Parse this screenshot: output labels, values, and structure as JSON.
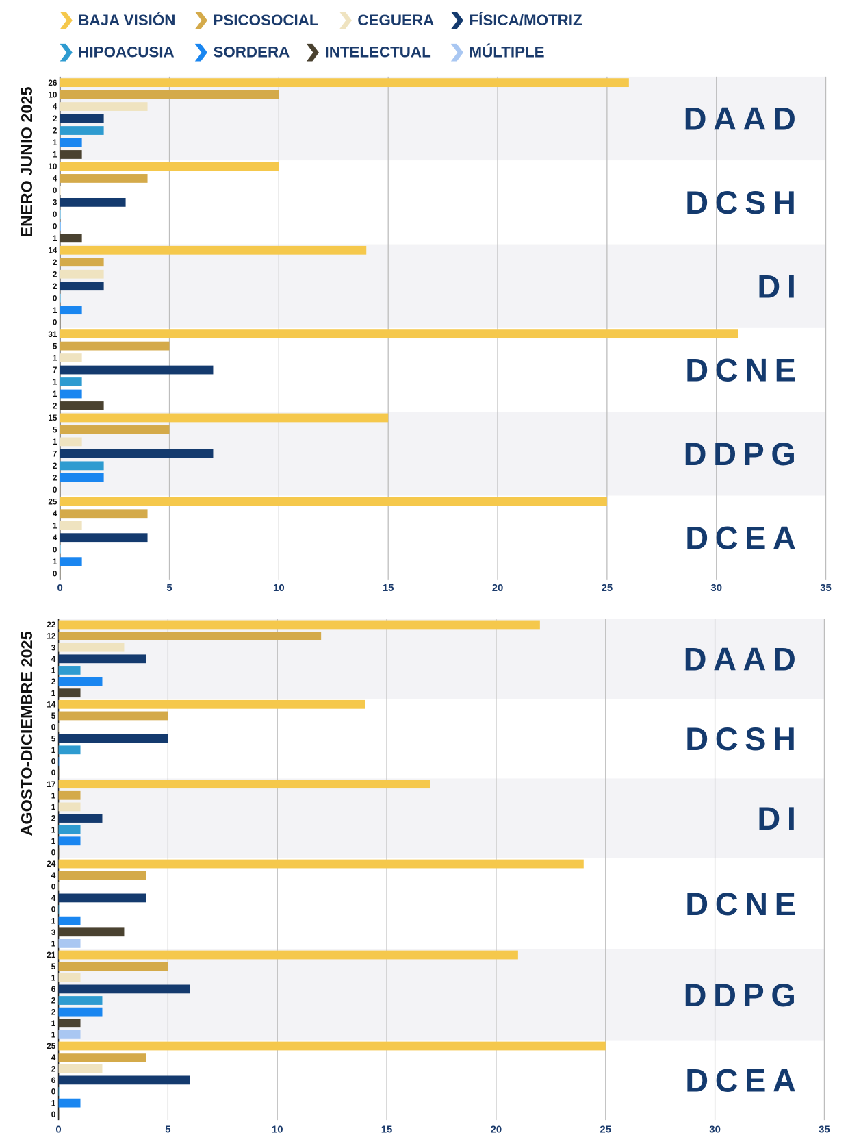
{
  "chart_data": [
    {
      "type": "bar",
      "orientation": "horizontal",
      "title": "ENERO JUNIO 2025",
      "categories": [
        "DAAD",
        "DCSH",
        "DI",
        "DCNE",
        "DDPG",
        "DCEA"
      ],
      "series": [
        {
          "name": "BAJA VISIÓN",
          "color": "#f5c84c",
          "values": [
            26,
            10,
            14,
            31,
            15,
            25
          ]
        },
        {
          "name": "PSICOSOCIAL",
          "color": "#d4aa4a",
          "values": [
            10,
            4,
            2,
            5,
            5,
            4
          ]
        },
        {
          "name": "CEGUERA",
          "color": "#efe3c0",
          "values": [
            4,
            0,
            2,
            1,
            1,
            1
          ]
        },
        {
          "name": "FÍSICA/MOTRIZ",
          "color": "#143a6e",
          "values": [
            2,
            3,
            2,
            7,
            7,
            4
          ]
        },
        {
          "name": "HIPOACUSIA",
          "color": "#2e9bd0",
          "values": [
            2,
            0,
            0,
            1,
            2,
            0
          ]
        },
        {
          "name": "SORDERA",
          "color": "#1a86f0",
          "values": [
            1,
            0,
            1,
            1,
            2,
            1
          ]
        },
        {
          "name": "INTELECTUAL",
          "color": "#4a4230",
          "values": [
            1,
            1,
            0,
            2,
            0,
            0
          ]
        },
        {
          "name": "MÚLTIPLE",
          "color": "#a9c7f2",
          "values": [
            null,
            null,
            null,
            null,
            null,
            null
          ]
        }
      ],
      "xlim": [
        0,
        35
      ],
      "xticks": [
        0,
        5,
        10,
        15,
        20,
        25,
        30,
        35
      ],
      "grid": true
    },
    {
      "type": "bar",
      "orientation": "horizontal",
      "title": "AGOSTO-DICIEMBRE 2025",
      "categories": [
        "DAAD",
        "DCSH",
        "DI",
        "DCNE",
        "DDPG",
        "DCEA"
      ],
      "series": [
        {
          "values": [
            22,
            14,
            17,
            24,
            21,
            25
          ]
        },
        {
          "values": [
            12,
            5,
            1,
            4,
            5,
            4
          ]
        },
        {
          "values": [
            3,
            0,
            1,
            0,
            1,
            2
          ]
        },
        {
          "values": [
            4,
            5,
            2,
            4,
            6,
            6
          ]
        },
        {
          "values": [
            1,
            1,
            1,
            0,
            2,
            0
          ]
        },
        {
          "values": [
            2,
            0,
            1,
            1,
            2,
            1
          ]
        },
        {
          "values": [
            1,
            0,
            0,
            3,
            1,
            0
          ]
        },
        {
          "values": [
            null,
            null,
            null,
            1,
            1,
            null
          ]
        }
      ],
      "xlim": [
        0,
        35
      ],
      "xticks": [
        0,
        5,
        10,
        15,
        20,
        25,
        30,
        35
      ],
      "grid": true
    }
  ]
}
